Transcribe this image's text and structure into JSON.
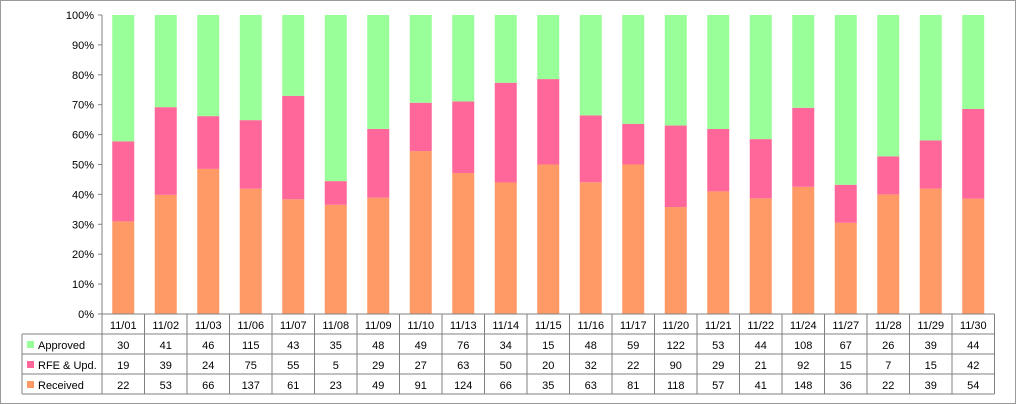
{
  "chart_data": {
    "type": "bar",
    "stacked": "percent",
    "categories": [
      "11/01",
      "11/02",
      "11/03",
      "11/06",
      "11/07",
      "11/08",
      "11/09",
      "11/10",
      "11/13",
      "11/14",
      "11/15",
      "11/16",
      "11/17",
      "11/20",
      "11/21",
      "11/22",
      "11/24",
      "11/27",
      "11/28",
      "11/29",
      "11/30"
    ],
    "series": [
      {
        "name": "Received",
        "color": "#ff9966",
        "values": [
          22,
          53,
          66,
          137,
          61,
          23,
          49,
          91,
          124,
          66,
          35,
          63,
          81,
          118,
          57,
          41,
          148,
          36,
          22,
          39,
          54
        ]
      },
      {
        "name": "RFE & Upd.",
        "color": "#ff6699",
        "values": [
          19,
          39,
          24,
          75,
          55,
          5,
          29,
          27,
          63,
          50,
          20,
          32,
          22,
          90,
          29,
          21,
          92,
          15,
          7,
          15,
          42
        ]
      },
      {
        "name": "Approved",
        "color": "#99ff99",
        "values": [
          30,
          41,
          46,
          115,
          43,
          35,
          48,
          49,
          76,
          34,
          15,
          48,
          59,
          122,
          53,
          44,
          108,
          67,
          26,
          39,
          44
        ]
      }
    ],
    "table_row_order": [
      "Approved",
      "RFE & Upd.",
      "Received"
    ],
    "ylim": [
      0,
      100
    ],
    "yticks": [
      "0%",
      "10%",
      "20%",
      "30%",
      "40%",
      "50%",
      "60%",
      "70%",
      "80%",
      "90%",
      "100%"
    ],
    "grid": false,
    "legend": "data-table"
  }
}
